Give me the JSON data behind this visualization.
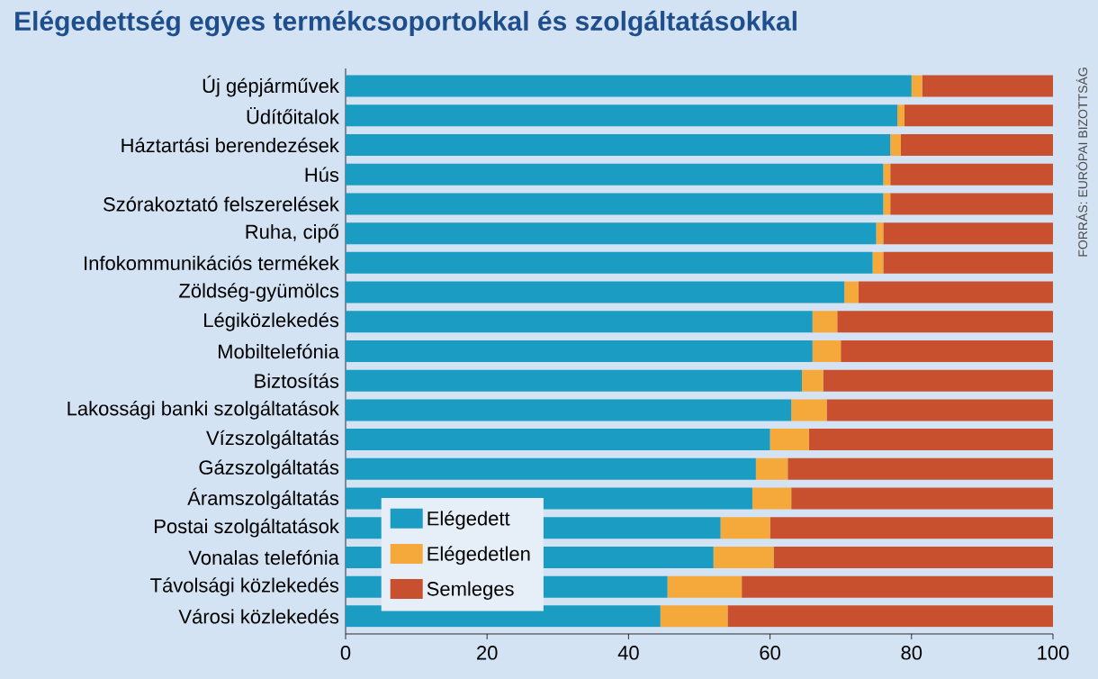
{
  "chart_data": {
    "type": "bar",
    "orientation": "horizontal",
    "stacked": true,
    "title": "Elégedettség egyes termékcsoportokkal és szolgáltatásokkal",
    "categories": [
      "Új gépjárművek",
      "Üdítőitalok",
      "Háztartási berendezések",
      "Hús",
      "Szórakoztató felszerelések",
      "Ruha, cipő",
      "Infokommunikációs termékek",
      "Zöldség-gyümölcs",
      "Légiközlekedés",
      "Mobiltelefónia",
      "Biztosítás",
      "Lakossági banki szolgáltatások",
      "Vízszolgáltatás",
      "Gázszolgáltatás",
      "Áramszolgáltatás",
      "Postai szolgáltatások",
      "Vonalas telefónia",
      "Távolsági közlekedés",
      "Városi közlekedés"
    ],
    "series": [
      {
        "name": "Elégedett",
        "color": "#1b9cc2",
        "values": [
          80,
          78,
          77,
          76,
          76,
          75,
          74.5,
          70.5,
          66,
          66,
          64.5,
          63,
          60,
          58,
          57.5,
          53,
          52,
          45.5,
          44.5
        ]
      },
      {
        "name": "Elégedetlen",
        "color": "#f5a93a",
        "values": [
          1.5,
          1,
          1.5,
          1,
          1,
          1,
          1.5,
          2,
          3.5,
          4,
          3,
          5,
          5.5,
          4.5,
          5.5,
          7,
          8.5,
          10.5,
          9.5
        ]
      },
      {
        "name": "Semleges",
        "color": "#c9502f",
        "values": [
          18.5,
          21,
          21.5,
          23,
          23,
          24,
          24,
          27.5,
          30.5,
          30,
          32.5,
          32,
          34.5,
          37.5,
          37,
          40,
          39.5,
          44,
          46
        ]
      }
    ],
    "xlim": [
      0,
      100
    ],
    "xticks": [
      0,
      20,
      40,
      60,
      80,
      100
    ],
    "legend": "bottom left",
    "annotations": [
      "FORRÁS: EURÓPAI BIZOTTSÁG"
    ]
  }
}
